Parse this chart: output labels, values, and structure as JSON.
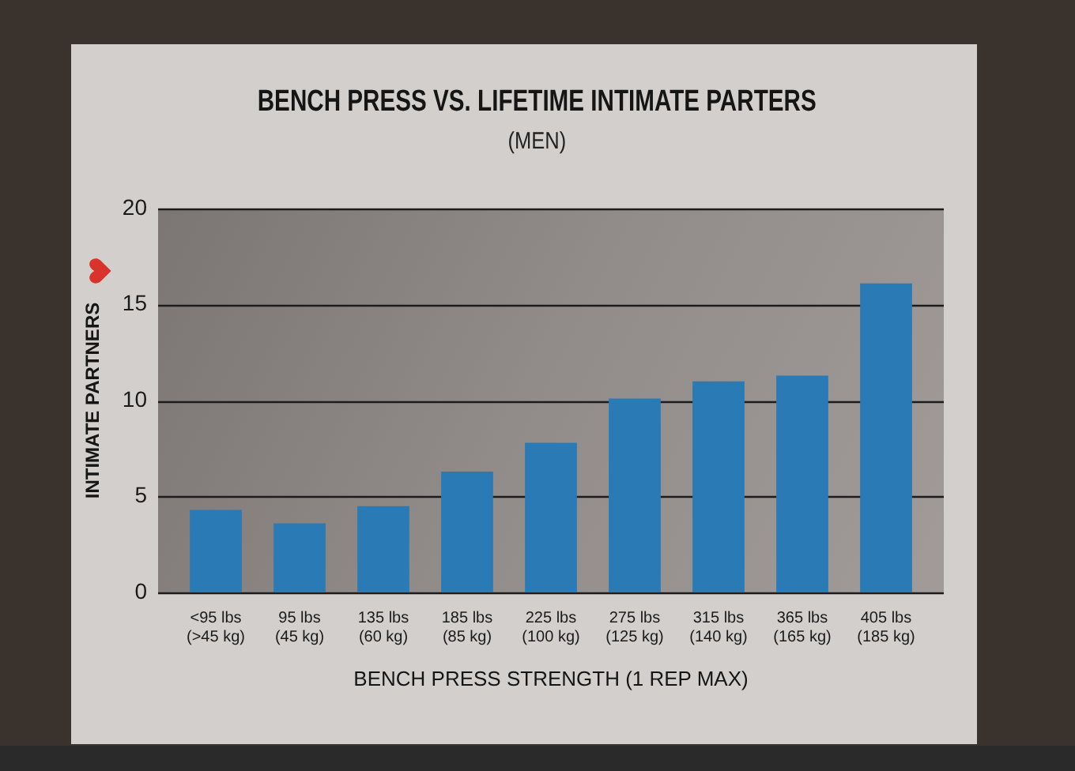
{
  "chart_data": {
    "type": "bar",
    "title": "BENCH PRESS VS. LIFETIME INTIMATE PARTERS",
    "subtitle": "(MEN)",
    "xlabel": "BENCH PRESS STRENGTH (1 REP MAX)",
    "ylabel": "INTIMATE PARTNERS",
    "categories": [
      "<95 lbs\n(>45 kg)",
      "95 lbs\n(45 kg)",
      "135 lbs\n(60 kg)",
      "185 lbs\n(85 kg)",
      "225 lbs\n(100 kg)",
      "275 lbs\n(125 kg)",
      "315 lbs\n(140 kg)",
      "365 lbs\n(165 kg)",
      "405 lbs\n(185 kg)"
    ],
    "values": [
      4.3,
      3.6,
      4.5,
      6.3,
      7.8,
      10.1,
      11,
      11.3,
      16.1
    ],
    "color": "#2a7ab5",
    "ylim": [
      0,
      20
    ],
    "yticks": [
      0,
      5,
      10,
      15,
      20
    ],
    "grid": "y"
  }
}
